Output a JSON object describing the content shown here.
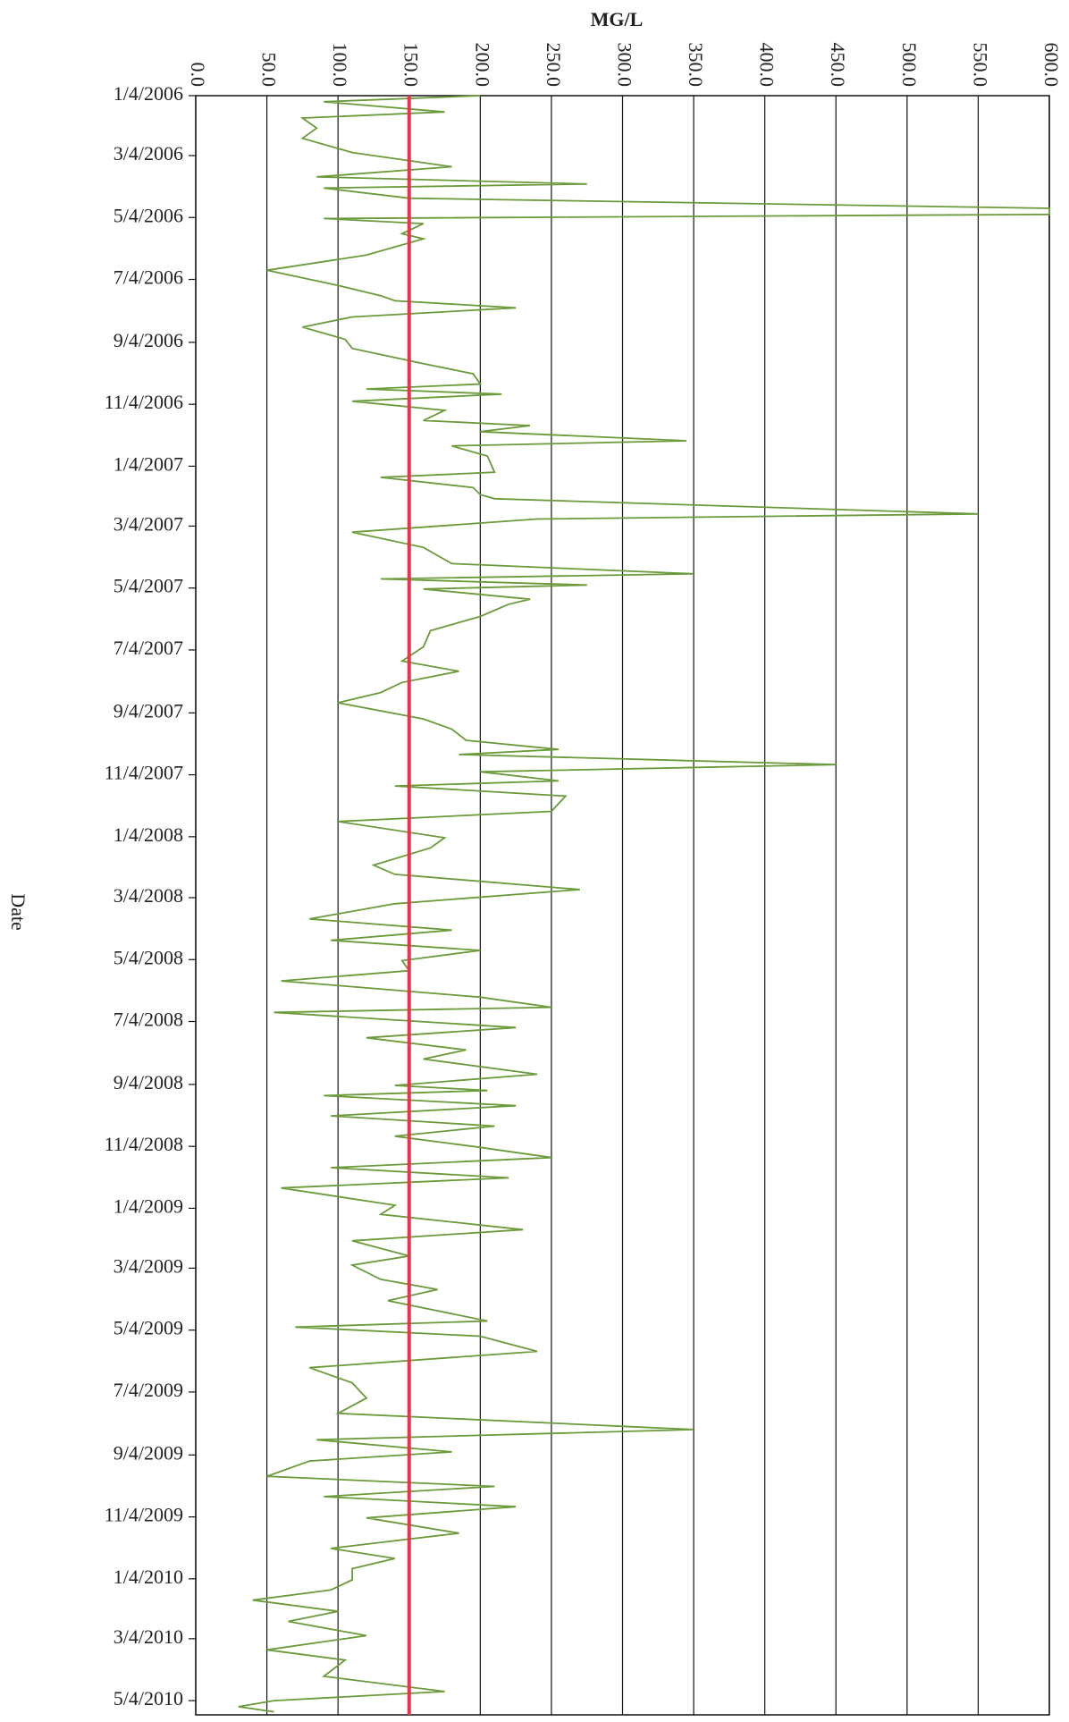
{
  "chart_data": {
    "type": "line",
    "orientation": "vertical-dates",
    "value_axis_label": "MG/L",
    "date_axis_label": "Date",
    "xlim": [
      0,
      600
    ],
    "xticks": [
      {
        "value": 0,
        "label": "0.0"
      },
      {
        "value": 50,
        "label": "50.0"
      },
      {
        "value": 100,
        "label": "100.0"
      },
      {
        "value": 150,
        "label": "150.0"
      },
      {
        "value": 200,
        "label": "200.0"
      },
      {
        "value": 250,
        "label": "250.0"
      },
      {
        "value": 300,
        "label": "300.0"
      },
      {
        "value": 350,
        "label": "350.0"
      },
      {
        "value": 400,
        "label": "400.0"
      },
      {
        "value": 450,
        "label": "450.0"
      },
      {
        "value": 500,
        "label": "500.0"
      },
      {
        "value": 550,
        "label": "550.0"
      },
      {
        "value": 600,
        "label": "600.0"
      }
    ],
    "grid": true,
    "ylim": [
      "2006-01-04",
      "2010-05-18"
    ],
    "yticks": [
      {
        "value": "2006-01-04",
        "label": "1/4/2006"
      },
      {
        "value": "2006-03-04",
        "label": "3/4/2006"
      },
      {
        "value": "2006-05-04",
        "label": "5/4/2006"
      },
      {
        "value": "2006-07-04",
        "label": "7/4/2006"
      },
      {
        "value": "2006-09-04",
        "label": "9/4/2006"
      },
      {
        "value": "2006-11-04",
        "label": "11/4/2006"
      },
      {
        "value": "2007-01-04",
        "label": "1/4/2007"
      },
      {
        "value": "2007-03-04",
        "label": "3/4/2007"
      },
      {
        "value": "2007-05-04",
        "label": "5/4/2007"
      },
      {
        "value": "2007-07-04",
        "label": "7/4/2007"
      },
      {
        "value": "2007-09-04",
        "label": "9/4/2007"
      },
      {
        "value": "2007-11-04",
        "label": "11/4/2007"
      },
      {
        "value": "2008-01-04",
        "label": "1/4/2008"
      },
      {
        "value": "2008-03-04",
        "label": "3/4/2008"
      },
      {
        "value": "2008-05-04",
        "label": "5/4/2008"
      },
      {
        "value": "2008-07-04",
        "label": "7/4/2008"
      },
      {
        "value": "2008-09-04",
        "label": "9/4/2008"
      },
      {
        "value": "2008-11-04",
        "label": "11/4/2008"
      },
      {
        "value": "2009-01-04",
        "label": "1/4/2009"
      },
      {
        "value": "2009-03-04",
        "label": "3/4/2009"
      },
      {
        "value": "2009-05-04",
        "label": "5/4/2009"
      },
      {
        "value": "2009-07-04",
        "label": "7/4/2009"
      },
      {
        "value": "2009-09-04",
        "label": "9/4/2009"
      },
      {
        "value": "2009-11-04",
        "label": "11/4/2009"
      },
      {
        "value": "2010-01-04",
        "label": "1/4/2010"
      },
      {
        "value": "2010-03-04",
        "label": "3/4/2010"
      },
      {
        "value": "2010-05-04",
        "label": "5/4/2010"
      }
    ],
    "reference_line": {
      "value": 150,
      "color": "#e8344e"
    },
    "series": [
      {
        "color": "#6a9a3a",
        "dates": [
          "2006-01-04",
          "2006-01-10",
          "2006-01-20",
          "2006-01-26",
          "2006-02-05",
          "2006-02-15",
          "2006-03-01",
          "2006-03-15",
          "2006-03-25",
          "2006-04-01",
          "2006-04-05",
          "2006-04-15",
          "2006-04-25",
          "2006-05-01",
          "2006-05-05",
          "2006-05-10",
          "2006-05-20",
          "2006-05-25",
          "2006-06-10",
          "2006-06-25",
          "2006-07-10",
          "2006-07-20",
          "2006-07-25",
          "2006-08-01",
          "2006-08-10",
          "2006-08-20",
          "2006-09-01",
          "2006-09-10",
          "2006-09-25",
          "2006-10-05",
          "2006-10-15",
          "2006-10-20",
          "2006-10-25",
          "2006-11-01",
          "2006-11-10",
          "2006-11-20",
          "2006-11-25",
          "2006-12-01",
          "2006-12-10",
          "2006-12-15",
          "2006-12-25",
          "2007-01-10",
          "2007-01-15",
          "2007-01-25",
          "2007-02-01",
          "2007-02-05",
          "2007-02-20",
          "2007-02-25",
          "2007-03-10",
          "2007-03-25",
          "2007-04-10",
          "2007-04-20",
          "2007-04-25",
          "2007-05-01",
          "2007-05-05",
          "2007-05-15",
          "2007-05-20",
          "2007-06-01",
          "2007-06-15",
          "2007-07-01",
          "2007-07-15",
          "2007-07-25",
          "2007-08-05",
          "2007-08-15",
          "2007-08-25",
          "2007-09-10",
          "2007-09-20",
          "2007-10-01",
          "2007-10-10",
          "2007-10-15",
          "2007-10-25",
          "2007-11-01",
          "2007-11-10",
          "2007-11-15",
          "2007-11-25",
          "2007-12-10",
          "2007-12-20",
          "2008-01-05",
          "2008-01-15",
          "2008-02-01",
          "2008-02-10",
          "2008-02-25",
          "2008-03-10",
          "2008-03-25",
          "2008-04-05",
          "2008-04-15",
          "2008-04-25",
          "2008-05-05",
          "2008-05-15",
          "2008-05-25",
          "2008-06-10",
          "2008-06-20",
          "2008-06-25",
          "2008-07-10",
          "2008-07-20",
          "2008-08-01",
          "2008-08-10",
          "2008-08-25",
          "2008-09-05",
          "2008-09-10",
          "2008-09-15",
          "2008-09-25",
          "2008-10-05",
          "2008-10-15",
          "2008-10-25",
          "2008-11-05",
          "2008-11-15",
          "2008-11-25",
          "2008-12-05",
          "2008-12-15",
          "2009-01-01",
          "2009-01-10",
          "2009-01-25",
          "2009-02-05",
          "2009-02-20",
          "2009-03-01",
          "2009-03-15",
          "2009-03-25",
          "2009-04-05",
          "2009-04-25",
          "2009-05-01",
          "2009-05-10",
          "2009-05-25",
          "2009-06-10",
          "2009-06-25",
          "2009-07-10",
          "2009-07-25",
          "2009-08-10",
          "2009-08-20",
          "2009-09-01",
          "2009-09-10",
          "2009-09-25",
          "2009-10-05",
          "2009-10-15",
          "2009-10-25",
          "2009-11-05",
          "2009-11-20",
          "2009-12-05",
          "2009-12-15",
          "2009-12-25",
          "2010-01-05",
          "2010-01-15",
          "2010-01-25",
          "2010-02-05",
          "2010-02-15",
          "2010-03-01",
          "2010-03-15",
          "2010-03-25",
          "2010-04-10",
          "2010-04-25",
          "2010-05-04",
          "2010-05-10",
          "2010-05-15"
        ],
        "values": [
          200,
          90,
          175,
          75,
          85,
          75,
          110,
          180,
          85,
          275,
          90,
          150,
          600,
          600,
          90,
          160,
          145,
          160,
          120,
          50,
          100,
          130,
          140,
          225,
          110,
          75,
          105,
          110,
          160,
          195,
          200,
          120,
          215,
          110,
          175,
          160,
          235,
          200,
          345,
          180,
          205,
          210,
          130,
          195,
          200,
          210,
          550,
          240,
          110,
          160,
          180,
          350,
          130,
          275,
          160,
          235,
          220,
          200,
          165,
          160,
          145,
          185,
          145,
          130,
          100,
          160,
          180,
          190,
          255,
          185,
          450,
          200,
          255,
          140,
          260,
          250,
          100,
          175,
          165,
          125,
          140,
          270,
          140,
          80,
          180,
          95,
          200,
          145,
          150,
          60,
          200,
          250,
          55,
          225,
          120,
          190,
          160,
          240,
          140,
          205,
          90,
          225,
          95,
          210,
          140,
          200,
          250,
          95,
          220,
          60,
          140,
          130,
          230,
          110,
          150,
          110,
          130,
          170,
          135,
          205,
          70,
          200,
          240,
          80,
          110,
          120,
          100,
          350,
          85,
          180,
          80,
          50,
          210,
          90,
          225,
          120,
          185,
          95,
          140,
          110,
          110,
          95,
          40,
          100,
          65,
          120,
          50,
          105,
          90,
          175,
          55,
          30,
          55
        ]
      }
    ]
  }
}
